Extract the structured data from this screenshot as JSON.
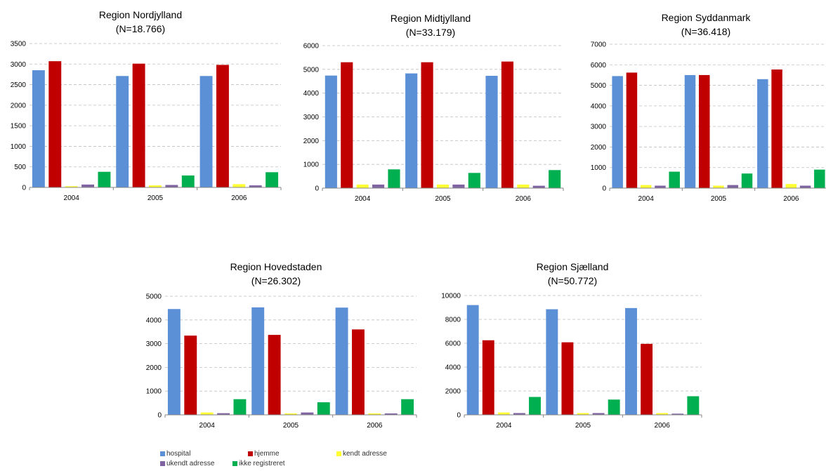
{
  "colors": {
    "hospital": "#5B8FD6",
    "hjemme": "#C00000",
    "kendt adresse": "#FFFF33",
    "ukendt adresse": "#8064A2",
    "ikke registreret": "#00B050"
  },
  "legend": {
    "items": [
      {
        "label": "hospital",
        "color": "#5B8FD6"
      },
      {
        "label": "hjemme",
        "color": "#C00000"
      },
      {
        "label": "kendt adresse",
        "color": "#FFFF33"
      },
      {
        "label": "ukendt adresse",
        "color": "#8064A2"
      },
      {
        "label": "ikke registreret",
        "color": "#00B050"
      }
    ]
  },
  "chart_data": [
    {
      "type": "bar",
      "title": "Region Nordjylland",
      "subtitle": "(N=18.766)",
      "categories": [
        "2004",
        "2005",
        "2006"
      ],
      "ylim": [
        0,
        3500
      ],
      "yticks": [
        0,
        500,
        1000,
        1500,
        2000,
        2500,
        3000,
        3500
      ],
      "grid": true,
      "series": [
        {
          "name": "hospital",
          "values": [
            2850,
            2710,
            2710
          ]
        },
        {
          "name": "hjemme",
          "values": [
            3070,
            3010,
            2980
          ]
        },
        {
          "name": "kendt adresse",
          "values": [
            30,
            50,
            80
          ]
        },
        {
          "name": "ukendt adresse",
          "values": [
            70,
            60,
            50
          ]
        },
        {
          "name": "ikke registreret",
          "values": [
            380,
            290,
            370
          ]
        }
      ]
    },
    {
      "type": "bar",
      "title": "Region Midtjylland",
      "subtitle": "(N=33.179)",
      "categories": [
        "2004",
        "2005",
        "2006"
      ],
      "ylim": [
        0,
        6000
      ],
      "yticks": [
        0,
        1000,
        2000,
        3000,
        4000,
        5000,
        6000
      ],
      "grid": true,
      "series": [
        {
          "name": "hospital",
          "values": [
            4740,
            4830,
            4730
          ]
        },
        {
          "name": "hjemme",
          "values": [
            5300,
            5300,
            5330
          ]
        },
        {
          "name": "kendt adresse",
          "values": [
            150,
            150,
            150
          ]
        },
        {
          "name": "ukendt adresse",
          "values": [
            150,
            150,
            100
          ]
        },
        {
          "name": "ikke registreret",
          "values": [
            790,
            640,
            760
          ]
        }
      ]
    },
    {
      "type": "bar",
      "title": "Region Syddanmark",
      "subtitle": "(N=36.418)",
      "categories": [
        "2004",
        "2005",
        "2006"
      ],
      "ylim": [
        0,
        7000
      ],
      "yticks": [
        0,
        1000,
        2000,
        3000,
        4000,
        5000,
        6000,
        7000
      ],
      "grid": true,
      "series": [
        {
          "name": "hospital",
          "values": [
            5450,
            5500,
            5300
          ]
        },
        {
          "name": "hjemme",
          "values": [
            5620,
            5500,
            5770
          ]
        },
        {
          "name": "kendt adresse",
          "values": [
            150,
            120,
            200
          ]
        },
        {
          "name": "ukendt adresse",
          "values": [
            120,
            150,
            120
          ]
        },
        {
          "name": "ikke registreret",
          "values": [
            800,
            710,
            900
          ]
        }
      ]
    },
    {
      "type": "bar",
      "title": "Region Hovedstaden",
      "subtitle": "(N=26.302)",
      "categories": [
        "2004",
        "2005",
        "2006"
      ],
      "ylim": [
        0,
        5000
      ],
      "yticks": [
        0,
        1000,
        2000,
        3000,
        4000,
        5000
      ],
      "grid": true,
      "series": [
        {
          "name": "hospital",
          "values": [
            4460,
            4530,
            4520
          ]
        },
        {
          "name": "hjemme",
          "values": [
            3340,
            3370,
            3600
          ]
        },
        {
          "name": "kendt adresse",
          "values": [
            100,
            60,
            60
          ]
        },
        {
          "name": "ukendt adresse",
          "values": [
            70,
            100,
            60
          ]
        },
        {
          "name": "ikke registreret",
          "values": [
            660,
            530,
            660
          ]
        }
      ]
    },
    {
      "type": "bar",
      "title": "Region Sjælland",
      "subtitle": "(N=50.772)",
      "categories": [
        "2004",
        "2005",
        "2006"
      ],
      "ylim": [
        0,
        10000
      ],
      "yticks": [
        0,
        2000,
        4000,
        6000,
        8000,
        10000
      ],
      "grid": true,
      "series": [
        {
          "name": "hospital",
          "values": [
            9200,
            8850,
            8950
          ]
        },
        {
          "name": "hjemme",
          "values": [
            6250,
            6080,
            5950
          ]
        },
        {
          "name": "kendt adresse",
          "values": [
            200,
            150,
            150
          ]
        },
        {
          "name": "ukendt adresse",
          "values": [
            150,
            150,
            100
          ]
        },
        {
          "name": "ikke registreret",
          "values": [
            1500,
            1280,
            1560
          ]
        }
      ]
    }
  ]
}
